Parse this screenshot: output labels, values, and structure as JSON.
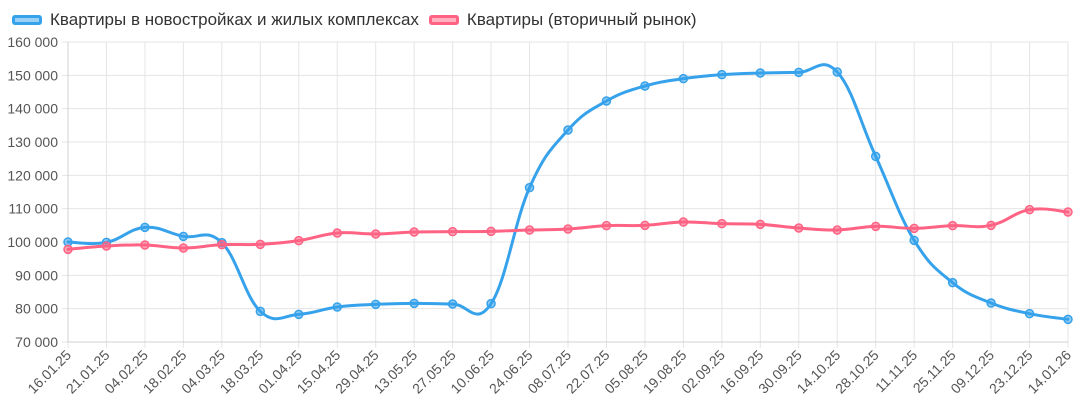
{
  "chart_data": {
    "type": "line",
    "title": "",
    "xlabel": "",
    "ylabel": "",
    "ylim": [
      70000,
      160000
    ],
    "y_ticks": [
      70000,
      80000,
      90000,
      100000,
      110000,
      120000,
      130000,
      140000,
      150000,
      160000
    ],
    "y_tick_labels": [
      "70 000",
      "80 000",
      "90 000",
      "100 000",
      "110 000",
      "120 000",
      "130 000",
      "140 000",
      "150 000",
      "160 000"
    ],
    "grid": true,
    "legend_position": "top-left",
    "x": [
      "16.01.25",
      "21.01.25",
      "04.02.25",
      "18.02.25",
      "04.03.25",
      "18.03.25",
      "01.04.25",
      "15.04.25",
      "29.04.25",
      "13.05.25",
      "27.05.25",
      "10.06.25",
      "24.06.25",
      "08.07.25",
      "22.07.25",
      "05.08.25",
      "19.08.25",
      "02.09.25",
      "16.09.25",
      "30.09.25",
      "14.10.25",
      "28.10.25",
      "11.11.25",
      "25.11.25",
      "09.12.25",
      "23.12.25",
      "14.01.26"
    ],
    "series": [
      {
        "name": "Квартиры в новостройках и жилых комплексах",
        "color": "#36a2eb",
        "values": [
          100000,
          99900,
          104400,
          101700,
          99800,
          79200,
          78300,
          80500,
          81300,
          81600,
          81400,
          81500,
          116300,
          133600,
          142300,
          146800,
          149000,
          150200,
          150700,
          150900,
          151000,
          125700,
          100500,
          87800,
          81700,
          78500,
          76800
        ]
      },
      {
        "name": "Квартиры (вторичный рынок)",
        "color": "#ff6384",
        "values": [
          97800,
          98800,
          99100,
          98200,
          99200,
          99300,
          100400,
          102700,
          102400,
          103000,
          103100,
          103200,
          103600,
          103900,
          104900,
          105000,
          106000,
          105500,
          105300,
          104200,
          103600,
          104700,
          104100,
          104900,
          105000,
          109700,
          109000
        ]
      }
    ]
  }
}
